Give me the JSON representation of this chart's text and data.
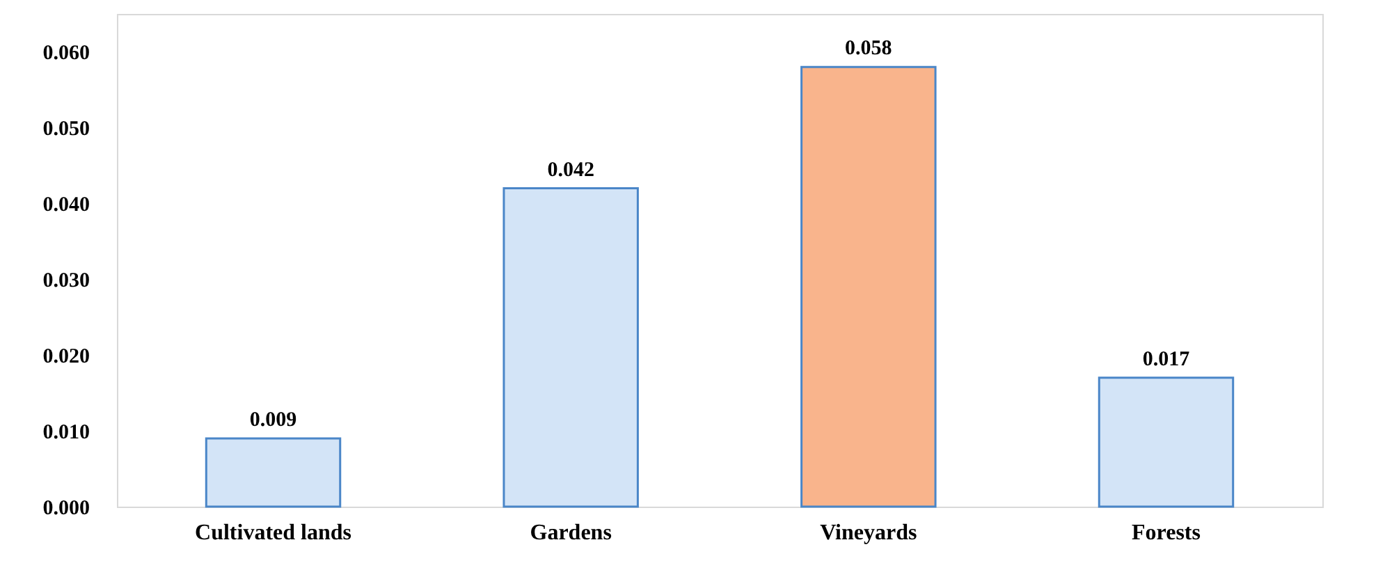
{
  "chart_data": {
    "type": "bar",
    "categories": [
      "Cultivated lands",
      "Gardens",
      "Vineyards",
      "Forests"
    ],
    "values": [
      0.009,
      0.042,
      0.058,
      0.017
    ],
    "colors": [
      "#d3e4f7",
      "#d3e4f7",
      "#f9b48c",
      "#d3e4f7"
    ],
    "ylim": [
      0,
      0.065
    ],
    "yticks": [
      {
        "value": 0,
        "label": "0.000"
      },
      {
        "value": 0.01,
        "label": "0.010"
      },
      {
        "value": 0.02,
        "label": "0.020"
      },
      {
        "value": 0.03,
        "label": "0.030"
      },
      {
        "value": 0.04,
        "label": "0.040"
      },
      {
        "value": 0.05,
        "label": "0.050"
      },
      {
        "value": 0.06,
        "label": "0.060"
      }
    ],
    "data_labels": true,
    "grid": false
  }
}
